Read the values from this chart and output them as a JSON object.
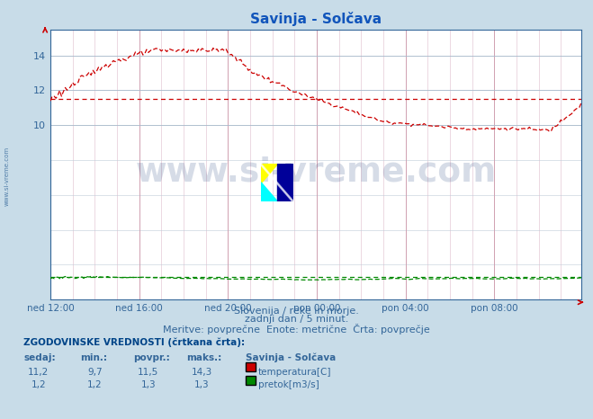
{
  "title": "Savinja - Solčava",
  "title_color": "#1155bb",
  "bg_color": "#c8dce8",
  "plot_bg_color": "#ffffff",
  "grid_color_major": "#cc99aa",
  "grid_color_minor": "#ddbbcc",
  "grid_h_major": "#aabbcc",
  "grid_h_minor": "#c0ccd8",
  "xlabel_color": "#336699",
  "ylabel_color": "#336699",
  "axis_color": "#336699",
  "x_ticks_labels": [
    "ned 12:00",
    "ned 16:00",
    "ned 20:00",
    "pon 00:00",
    "pon 04:00",
    "pon 08:00"
  ],
  "x_ticks_pos": [
    0,
    48,
    96,
    144,
    192,
    240
  ],
  "y_ticks": [
    10,
    12,
    14
  ],
  "ylim": [
    0,
    15.5
  ],
  "xlim": [
    0,
    287
  ],
  "temp_color": "#cc0000",
  "flow_color": "#008800",
  "avg_temp": 11.5,
  "avg_flow": 1.3,
  "watermark_text": "www.si-vreme.com",
  "watermark_color": "#1e3f7a",
  "watermark_alpha": 0.18,
  "footer_line1": "Slovenija / reke in morje.",
  "footer_line2": "zadnji dan / 5 minut.",
  "footer_line3": "Meritve: povprečne  Enote: metrične  Črta: povprečje",
  "footer_color": "#336699",
  "table_title": "ZGODOVINSKE VREDNOSTI (črtkana črta):",
  "table_headers": [
    "sedaj:",
    "min.:",
    "povpr.:",
    "maks.:",
    "Savinja - Solčava"
  ],
  "table_row1": [
    "11,2",
    "9,7",
    "11,5",
    "14,3"
  ],
  "table_row2": [
    "1,2",
    "1,2",
    "1,3",
    "1,3"
  ],
  "table_label1": "temperatura[C]",
  "table_label2": "pretok[m3/s]",
  "table_color": "#336699",
  "table_title_color": "#004488",
  "left_label": "www.si-vreme.com",
  "left_label_color": "#336699",
  "figsize": [
    6.59,
    4.66
  ],
  "dpi": 100
}
